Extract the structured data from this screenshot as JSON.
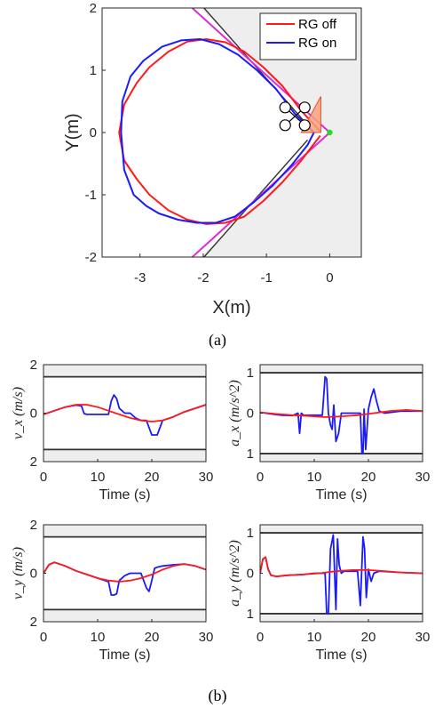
{
  "captions": {
    "a": "(a)",
    "b": "(b)"
  },
  "colors": {
    "rg_off": "#ff1a1a",
    "rg_on": "#1a1aff",
    "line_of_sight": "#e02ad8",
    "constraint_fill": "#eeeeee",
    "bound": "#333333",
    "cone_fill": "#f7a27c",
    "cone_edge": "#e6502a",
    "target": "#22dd22"
  },
  "chart_data": [
    {
      "type": "line",
      "xlabel": "X(m)",
      "ylabel": "Y(m)",
      "xlim": [
        -3.6,
        0.5
      ],
      "ylim": [
        -2,
        2
      ],
      "xticks": [
        -3,
        -2,
        -1,
        0
      ],
      "yticks": [
        -2,
        -1,
        0,
        1,
        2
      ],
      "xtick_labels": [
        "-3",
        "-2",
        "-1",
        "0"
      ],
      "ytick_labels": [
        "-2",
        "-1",
        "0",
        "1",
        "2"
      ],
      "legend": {
        "position": "top-right",
        "entries": [
          "RG off",
          "RG on"
        ]
      },
      "series": [
        {
          "name": "RG off",
          "x": [
            -0.15,
            -0.45,
            -0.75,
            -1.05,
            -1.35,
            -1.65,
            -1.95,
            -2.25,
            -2.55,
            -2.85,
            -3.05,
            -3.25,
            -3.33,
            -3.25,
            -3.05,
            -2.85,
            -2.55,
            -2.25,
            -1.95,
            -1.65,
            -1.35,
            -1.05,
            -0.75,
            -0.45,
            -0.15
          ],
          "y": [
            0.02,
            0.35,
            0.75,
            1.05,
            1.3,
            1.45,
            1.5,
            1.46,
            1.3,
            1.05,
            0.8,
            0.45,
            0.0,
            -0.45,
            -0.75,
            -1.0,
            -1.25,
            -1.4,
            -1.47,
            -1.45,
            -1.35,
            -1.1,
            -0.8,
            -0.45,
            -0.05
          ]
        },
        {
          "name": "RG on",
          "x": [
            -0.25,
            -0.55,
            -0.85,
            -1.15,
            -1.45,
            -1.75,
            -2.05,
            -2.35,
            -2.65,
            -2.95,
            -3.15,
            -3.28,
            -3.3,
            -3.25,
            -3.1,
            -2.9,
            -2.7,
            -2.4,
            -2.1,
            -1.8,
            -1.5,
            -1.2,
            -0.9,
            -0.6,
            -0.35,
            -0.25
          ],
          "y": [
            0.0,
            0.3,
            0.7,
            1.0,
            1.25,
            1.42,
            1.5,
            1.48,
            1.38,
            1.15,
            0.9,
            0.5,
            0.0,
            -0.6,
            -1.0,
            -1.18,
            -1.3,
            -1.4,
            -1.45,
            -1.45,
            -1.35,
            -1.12,
            -0.85,
            -0.52,
            -0.2,
            0.0
          ]
        }
      ],
      "annotations": {
        "target": [
          0.0,
          0.0
        ],
        "quad_center": [
          -0.55,
          0.26
        ],
        "cone_tip": [
          -0.45,
          0.0
        ],
        "cone_base_top": [
          -0.14,
          0.58
        ],
        "cone_base_bottom": [
          -0.14,
          0.0
        ]
      }
    },
    {
      "type": "line",
      "xlabel": "Time (s)",
      "ylabel": "v_x (m/s)",
      "xlim": [
        0,
        30
      ],
      "ylim": [
        -2,
        2
      ],
      "xticks": [
        0,
        10,
        20,
        30
      ],
      "yticks": [
        -2,
        0,
        2
      ],
      "xtick_labels": [
        "0",
        "10",
        "20",
        "30"
      ],
      "ytick_labels": [
        "2",
        "0",
        "2"
      ],
      "bounds": [
        1.5,
        -1.5
      ],
      "series": [
        {
          "name": "RG off",
          "x": [
            0,
            2,
            4,
            6,
            8,
            10,
            12,
            14,
            16,
            18,
            20,
            22,
            24,
            26,
            28,
            30
          ],
          "y": [
            -0.05,
            0.1,
            0.25,
            0.35,
            0.35,
            0.25,
            0.1,
            -0.05,
            -0.2,
            -0.3,
            -0.35,
            -0.3,
            -0.15,
            0.05,
            0.2,
            0.35
          ]
        },
        {
          "name": "RG on",
          "x": [
            0,
            2,
            4,
            6,
            7,
            7.5,
            8,
            10,
            12,
            12.5,
            13,
            13.5,
            14,
            15,
            16,
            17,
            18,
            19,
            20,
            21,
            22,
            24,
            26,
            28,
            30
          ],
          "y": [
            -0.05,
            0.1,
            0.25,
            0.33,
            0.3,
            -0.02,
            -0.05,
            -0.05,
            -0.05,
            0.5,
            0.75,
            0.6,
            0.2,
            0.0,
            0.0,
            -0.2,
            -0.3,
            -0.3,
            -0.9,
            -0.9,
            -0.3,
            -0.15,
            0.05,
            0.2,
            0.35
          ]
        }
      ]
    },
    {
      "type": "line",
      "xlabel": "Time (s)",
      "ylabel": "a_x (m/s^2)",
      "xlim": [
        0,
        30
      ],
      "ylim": [
        -1.2,
        1.2
      ],
      "xticks": [
        0,
        10,
        20,
        30
      ],
      "yticks": [
        -1,
        0,
        1
      ],
      "xtick_labels": [
        "0",
        "10",
        "20",
        "30"
      ],
      "ytick_labels": [
        "1",
        "0",
        "1"
      ],
      "bounds": [
        1,
        -1
      ],
      "series": [
        {
          "name": "RG off",
          "x": [
            0,
            3,
            6,
            9,
            12,
            15,
            18,
            21,
            24,
            27,
            30
          ],
          "y": [
            0.02,
            -0.02,
            -0.05,
            -0.07,
            -0.1,
            -0.08,
            -0.05,
            0.0,
            0.05,
            0.08,
            0.05
          ]
        },
        {
          "name": "RG on",
          "x": [
            0,
            2,
            4,
            6,
            7,
            7.3,
            7.6,
            8,
            10,
            11.5,
            12,
            12.3,
            12.6,
            13,
            13.3,
            13.6,
            14,
            14.5,
            15,
            17,
            18.5,
            18.8,
            19,
            19.2,
            19.5,
            20,
            20.5,
            21,
            21.5,
            22,
            23,
            26,
            30
          ],
          "y": [
            0.02,
            -0.02,
            -0.05,
            -0.06,
            0.0,
            -0.5,
            0.0,
            -0.05,
            -0.05,
            -0.05,
            0.9,
            0.85,
            0.0,
            -0.3,
            -0.4,
            0.2,
            -0.7,
            -0.5,
            0.0,
            0.0,
            0.0,
            -1.0,
            -1.0,
            0.1,
            -0.9,
            0.1,
            0.4,
            0.6,
            0.3,
            0.05,
            0.0,
            0.05,
            0.05
          ]
        }
      ]
    },
    {
      "type": "line",
      "xlabel": "Time (s)",
      "ylabel": "v_y (m/s)",
      "xlim": [
        0,
        30
      ],
      "ylim": [
        -2,
        2
      ],
      "xticks": [
        0,
        10,
        20,
        30
      ],
      "yticks": [
        -2,
        0,
        2
      ],
      "xtick_labels": [
        "0",
        "10",
        "20",
        "30"
      ],
      "ytick_labels": [
        "2",
        "0",
        "2"
      ],
      "bounds": [
        1.5,
        -1.5
      ],
      "series": [
        {
          "name": "RG off",
          "x": [
            0,
            1,
            2,
            4,
            6,
            8,
            10,
            12,
            14,
            16,
            18,
            20,
            22,
            24,
            26,
            28,
            30
          ],
          "y": [
            0.0,
            0.35,
            0.45,
            0.3,
            0.1,
            -0.05,
            -0.2,
            -0.3,
            -0.35,
            -0.3,
            -0.2,
            -0.05,
            0.15,
            0.3,
            0.38,
            0.3,
            0.15
          ]
        },
        {
          "name": "RG on",
          "x": [
            0,
            1,
            2,
            4,
            6,
            8,
            10,
            12,
            12.5,
            13,
            13.5,
            14,
            15,
            16,
            18,
            19,
            19.5,
            20,
            20.5,
            21,
            22,
            24,
            26,
            28,
            30
          ],
          "y": [
            0.0,
            0.35,
            0.45,
            0.3,
            0.1,
            -0.05,
            -0.2,
            -0.35,
            -0.9,
            -0.9,
            -0.85,
            -0.3,
            -0.1,
            0.0,
            0.0,
            -0.6,
            -0.75,
            -0.3,
            0.2,
            0.25,
            0.3,
            0.35,
            0.38,
            0.3,
            0.15
          ]
        }
      ]
    },
    {
      "type": "line",
      "xlabel": "Time (s)",
      "ylabel": "a_y (m/s^2)",
      "xlim": [
        0,
        30
      ],
      "ylim": [
        -1.2,
        1.2
      ],
      "xticks": [
        0,
        10,
        20,
        30
      ],
      "yticks": [
        -1,
        0,
        1
      ],
      "xtick_labels": [
        "0",
        "10",
        "20",
        "30"
      ],
      "ytick_labels": [
        "1",
        "0",
        "1"
      ],
      "bounds": [
        1,
        -1
      ],
      "series": [
        {
          "name": "RG off",
          "x": [
            0,
            0.5,
            1,
            1.5,
            2,
            3,
            5,
            8,
            11,
            14,
            17,
            20,
            23,
            26,
            30
          ],
          "y": [
            0.0,
            0.35,
            0.4,
            0.1,
            -0.05,
            -0.08,
            -0.05,
            -0.03,
            0.0,
            0.05,
            0.08,
            0.08,
            0.05,
            0.02,
            0.0
          ]
        },
        {
          "name": "RG on",
          "x": [
            0,
            0.5,
            1,
            1.5,
            2,
            3,
            5,
            8,
            10,
            12,
            12.3,
            12.6,
            13,
            13.5,
            14,
            14.3,
            14.6,
            15,
            15.5,
            17,
            18,
            18.5,
            19,
            19.3,
            19.6,
            20,
            20.5,
            21,
            22,
            26,
            30
          ],
          "y": [
            0.0,
            0.35,
            0.4,
            0.1,
            -0.05,
            -0.08,
            -0.05,
            -0.03,
            0.0,
            0.0,
            -1.0,
            -1.0,
            0.6,
            0.95,
            -0.9,
            0.85,
            0.2,
            0.0,
            0.05,
            0.05,
            0.05,
            -0.8,
            0.9,
            0.6,
            -0.6,
            0.1,
            -0.2,
            0.0,
            0.05,
            0.02,
            0.0
          ]
        }
      ]
    }
  ]
}
